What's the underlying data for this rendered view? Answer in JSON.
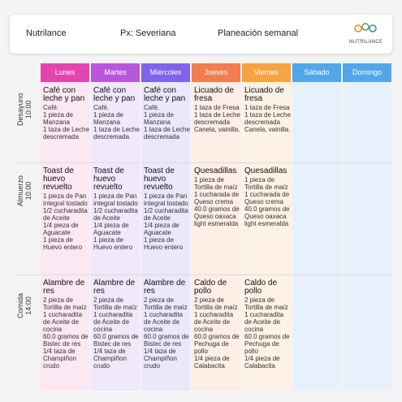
{
  "header": {
    "brand": "Nutrilance",
    "patient": "Px: Severiana",
    "title": "Planeación semanal",
    "logo": "NUTRILANCE"
  },
  "days": [
    "Lunes",
    "Martes",
    "Miércoles",
    "Jueves",
    "Viernes",
    "Sábado",
    "Domingo"
  ],
  "meals": [
    {
      "name": "Desayuno",
      "time": "10:00",
      "cells": [
        {
          "title": "Café con leche y pan",
          "items": [
            "Café.",
            "1 pieza de Manzana",
            "1 taza de Leche descremada"
          ]
        },
        {
          "title": "Café con leche y pan",
          "items": [
            "Café.",
            "1 pieza de Manzana",
            "1 taza de Leche descremada"
          ]
        },
        {
          "title": "Café con leche y pan",
          "items": [
            "Café.",
            "1 pieza de Manzana",
            "1 taza de Leche descremada"
          ]
        },
        {
          "title": "Licuado de fresa",
          "items": [
            "1 taza de Fresa",
            "1 taza de Leche descremada",
            "Canela, vainilla."
          ]
        },
        {
          "title": "Licuado de fresa",
          "items": [
            "1 taza de Fresa",
            "1 taza de Leche descremada",
            "Canela, vainilla."
          ]
        }
      ]
    },
    {
      "name": "Almuerzo",
      "time": "10:00",
      "cells": [
        {
          "title": "Toast de huevo revuelto",
          "items": [
            "1 pieza de Pan integral tostado",
            "1/2 cucharadita de Aceite",
            "1/4 pieza de Aguacate",
            "1 pieza de Huevo entero"
          ]
        },
        {
          "title": "Toast de huevo revuelto",
          "items": [
            "1 pieza de Pan integral tostado",
            "1/2 cucharadita de Aceite",
            "1/4 pieza de Aguacate",
            "1 pieza de Huevo entero"
          ]
        },
        {
          "title": "Toast de huevo revuelto",
          "items": [
            "1 pieza de Pan integral tostado",
            "1/2 cucharadita de Aceite",
            "1/4 pieza de Aguacate",
            "1 pieza de Huevo entero"
          ]
        },
        {
          "title": "Quesadillas",
          "items": [
            "1 pieza de Tortilla de maíz",
            "1 cucharada de Queso crema",
            "40.0 gramos de Queso oaxaca light esmeralda"
          ]
        },
        {
          "title": "Quesadillas",
          "items": [
            "1 pieza de Tortilla de maíz",
            "1 cucharada de Queso crema",
            "40.0 gramos de Queso oaxaca light esmeralda"
          ]
        }
      ]
    },
    {
      "name": "Comida",
      "time": "14:00",
      "cells": [
        {
          "title": "Alambre de res",
          "items": [
            "2 pieza de Tortilla de maíz",
            "1 cucharadita de Aceite de cocina",
            "60.0 gramos de Bistec de res",
            "1/4 taza de Champiñon crudo"
          ]
        },
        {
          "title": "Alambre de res",
          "items": [
            "2 pieza de Tortilla de maíz",
            "1 cucharadita de Aceite de cocina",
            "60.0 gramos de Bistec de res",
            "1/4 taza de Champiñon crudo"
          ]
        },
        {
          "title": "Alambre de res",
          "items": [
            "2 pieza de Tortilla de maíz",
            "1 cucharadita de Aceite de cocina",
            "60.0 gramos de Bistec de res",
            "1/4 taza de Champiñon crudo"
          ]
        },
        {
          "title": "Caldo de pollo",
          "items": [
            "2 pieza de Tortilla de maíz",
            "1 cucharadita de Aceite de cocina",
            "60.0 gramos de Pechuga de pollo",
            "1/4 pieza de Calabacita"
          ]
        },
        {
          "title": "Caldo de pollo",
          "items": [
            "2 pieza de Tortilla de maíz",
            "1 cucharadita de Aceite de cocina",
            "60.0 gramos de Pechuga de pollo",
            "1/4 pieza de Calabacita"
          ]
        }
      ]
    }
  ]
}
